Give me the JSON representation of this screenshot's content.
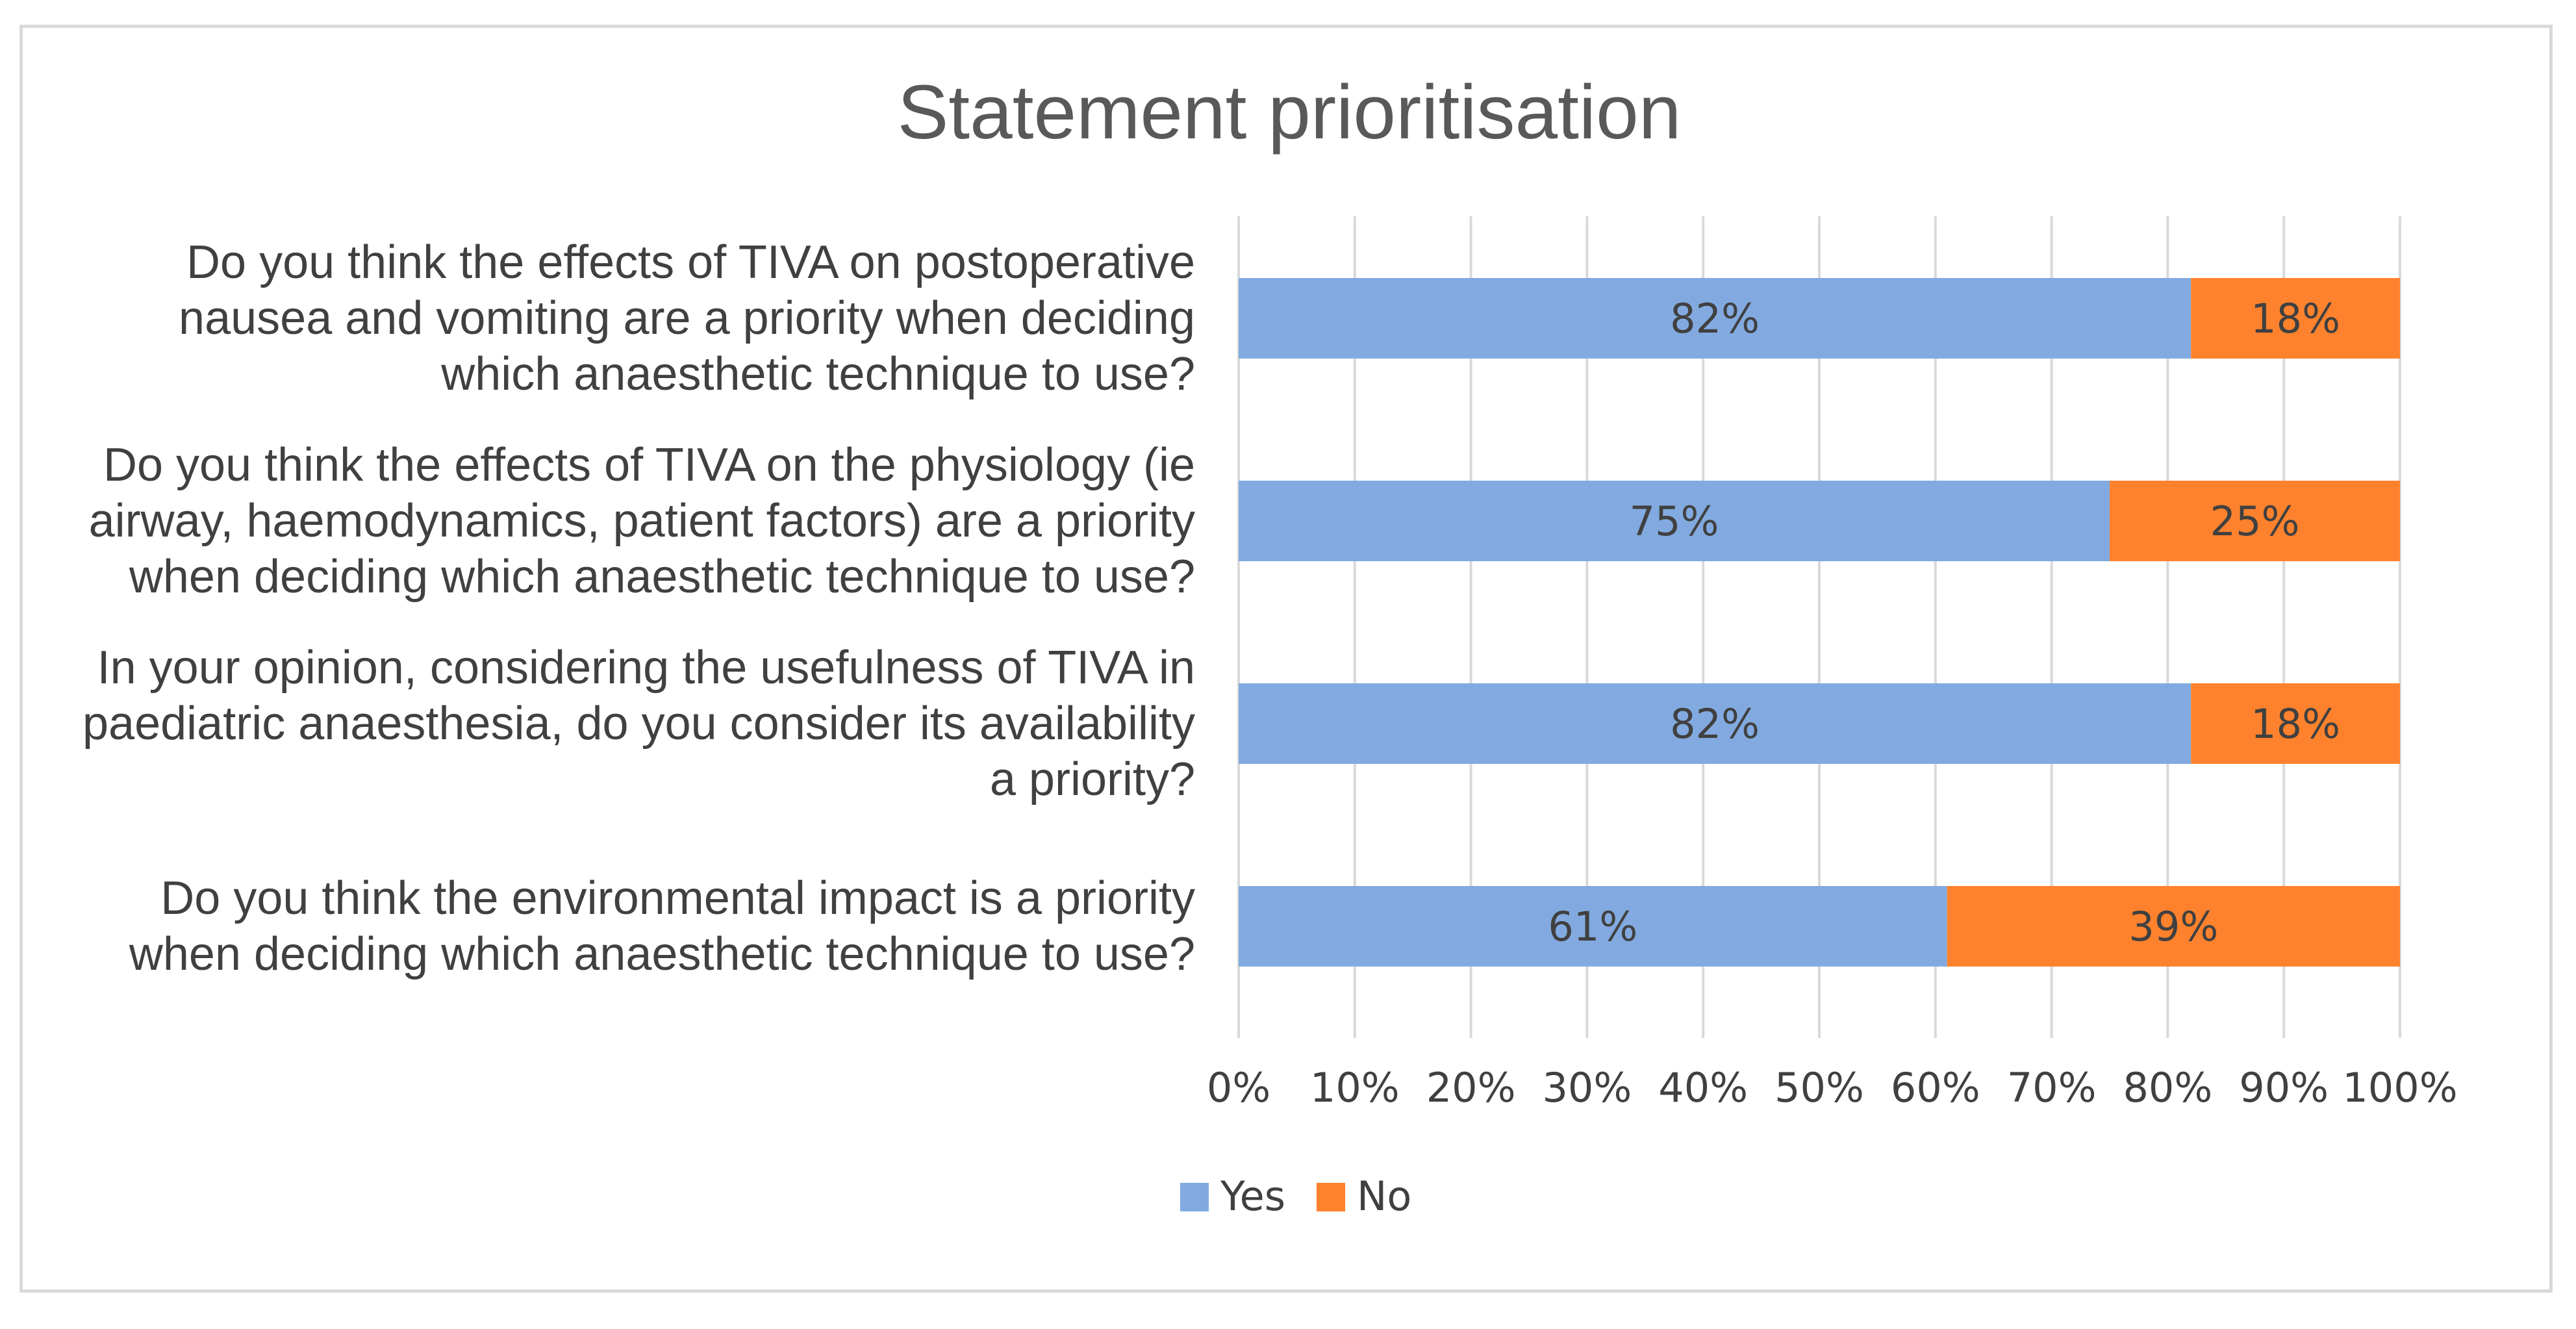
{
  "chart_data": {
    "type": "bar",
    "orientation": "horizontal",
    "stacked": "percent",
    "title": "Statement prioritisation",
    "categories": [
      "Do you think the effects of TIVA on postoperative nausea and vomiting are a priority when deciding which anaesthetic technique to use?",
      "Do you think the effects of TIVA on the physiology (ie airway, haemodynamics, patient factors) are a priority when deciding which anaesthetic technique to use?",
      "In your opinion, considering the usefulness of TIVA in paediatric anaesthesia, do you consider its availability a priority?",
      "Do you think the environmental impact is a priority when deciding which anaesthetic technique to use?"
    ],
    "category_label_lines": [
      [
        "Do you think the effects of TIVA on postoperative",
        "nausea and vomiting are a priority when deciding",
        "which anaesthetic technique to use?"
      ],
      [
        "Do you think the effects of TIVA on the physiology (ie",
        "airway, haemodynamics, patient factors) are a priority",
        "when deciding which anaesthetic technique to use?"
      ],
      [
        "In your opinion, considering the usefulness of TIVA in",
        "paediatric anaesthesia, do you consider its availability",
        "a priority?"
      ],
      [
        "Do you think the environmental impact is a priority",
        "when deciding which anaesthetic technique to use?"
      ]
    ],
    "series": [
      {
        "name": "Yes",
        "color": "#82aae0",
        "values": [
          82,
          75,
          82,
          61
        ],
        "labels": [
          "82%",
          "75%",
          "82%",
          "61%"
        ]
      },
      {
        "name": "No",
        "color": "#fe822d",
        "values": [
          18,
          25,
          18,
          39
        ],
        "labels": [
          "18%",
          "25%",
          "18%",
          "39%"
        ]
      }
    ],
    "xlim": [
      0,
      100
    ],
    "xticks": [
      "0%",
      "10%",
      "20%",
      "30%",
      "40%",
      "50%",
      "60%",
      "70%",
      "80%",
      "90%",
      "100%"
    ],
    "grid": "vertical",
    "gridline_color": "#d9d9d9",
    "legend": "bottom"
  }
}
